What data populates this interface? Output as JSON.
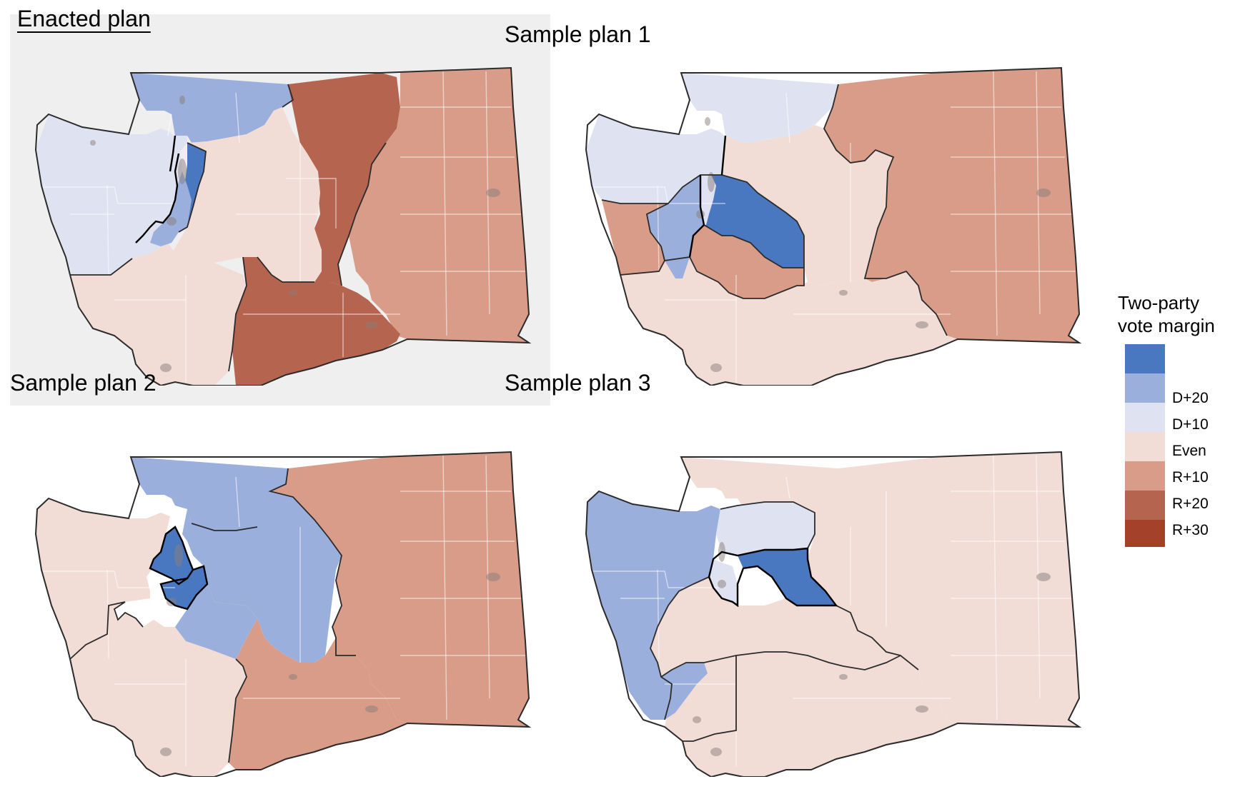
{
  "colors": {
    "d20": "#4a78c0",
    "d10": "#9bafdc",
    "even_d": "#dfe3f1",
    "even_r": "#f1ddd6",
    "r10": "#d89c88",
    "r20": "#b56450",
    "r30": "#a4412b",
    "state_outline": "#2b2b2b",
    "county_lines": "#ffffff",
    "highlight_bg": "#efefef"
  },
  "panels": [
    {
      "title": "Enacted plan",
      "highlighted": true,
      "districts": [
        {
          "margin_bin": "D+10",
          "color_key": "d10"
        },
        {
          "margin_bin": "Even",
          "color_key": "even_d"
        },
        {
          "margin_bin": "D+20",
          "color_key": "d20"
        },
        {
          "margin_bin": "R+20",
          "color_key": "r20"
        },
        {
          "margin_bin": "R+10",
          "color_key": "r10"
        },
        {
          "margin_bin": "Even",
          "color_key": "even_r"
        },
        {
          "margin_bin": "Even",
          "color_key": "even_r"
        },
        {
          "margin_bin": "R+20",
          "color_key": "r20"
        },
        {
          "margin_bin": "Even",
          "color_key": "even_d"
        },
        {
          "margin_bin": "D+10",
          "color_key": "d10"
        }
      ]
    },
    {
      "title": "Sample plan 1",
      "highlighted": false,
      "districts": [
        {
          "margin_bin": "Even",
          "color_key": "even_d"
        },
        {
          "margin_bin": "R+10",
          "color_key": "r10"
        },
        {
          "margin_bin": "Even",
          "color_key": "even_r"
        },
        {
          "margin_bin": "D+20",
          "color_key": "d20"
        },
        {
          "margin_bin": "Even",
          "color_key": "even_d"
        },
        {
          "margin_bin": "D+10",
          "color_key": "d10"
        },
        {
          "margin_bin": "R+10",
          "color_key": "r10"
        },
        {
          "margin_bin": "R+10",
          "color_key": "r10"
        },
        {
          "margin_bin": "Even",
          "color_key": "even_r"
        },
        {
          "margin_bin": "Even",
          "color_key": "even_d"
        }
      ]
    },
    {
      "title": "Sample plan 2",
      "highlighted": false,
      "districts": [
        {
          "margin_bin": "D+10",
          "color_key": "d10"
        },
        {
          "margin_bin": "Even",
          "color_key": "even_r"
        },
        {
          "margin_bin": "D+20",
          "color_key": "d20"
        },
        {
          "margin_bin": "D+10",
          "color_key": "d10"
        },
        {
          "margin_bin": "R+10",
          "color_key": "r10"
        },
        {
          "margin_bin": "R+10",
          "color_key": "r10"
        },
        {
          "margin_bin": "Even",
          "color_key": "even_r"
        },
        {
          "margin_bin": "Even",
          "color_key": "even_r"
        },
        {
          "margin_bin": "D+10",
          "color_key": "d10"
        },
        {
          "margin_bin": "D+20",
          "color_key": "d20"
        }
      ]
    },
    {
      "title": "Sample plan 3",
      "highlighted": false,
      "districts": [
        {
          "margin_bin": "Even",
          "color_key": "even_r"
        },
        {
          "margin_bin": "D+10",
          "color_key": "d10"
        },
        {
          "margin_bin": "Even",
          "color_key": "even_d"
        },
        {
          "margin_bin": "D+20",
          "color_key": "d20"
        },
        {
          "margin_bin": "Even",
          "color_key": "even_r"
        },
        {
          "margin_bin": "Even",
          "color_key": "even_r"
        },
        {
          "margin_bin": "Even",
          "color_key": "even_r"
        },
        {
          "margin_bin": "Even",
          "color_key": "even_r"
        },
        {
          "margin_bin": "Even",
          "color_key": "even_d"
        },
        {
          "margin_bin": "D+10",
          "color_key": "d10"
        }
      ]
    }
  ],
  "legend": {
    "title_line1": "Two-party",
    "title_line2": "vote margin",
    "swatches": [
      "d20",
      "d10",
      "even_d",
      "even_r",
      "r10",
      "r20",
      "r30"
    ],
    "labels": [
      "D+20",
      "D+10",
      "Even",
      "R+10",
      "R+20",
      "R+30"
    ]
  }
}
